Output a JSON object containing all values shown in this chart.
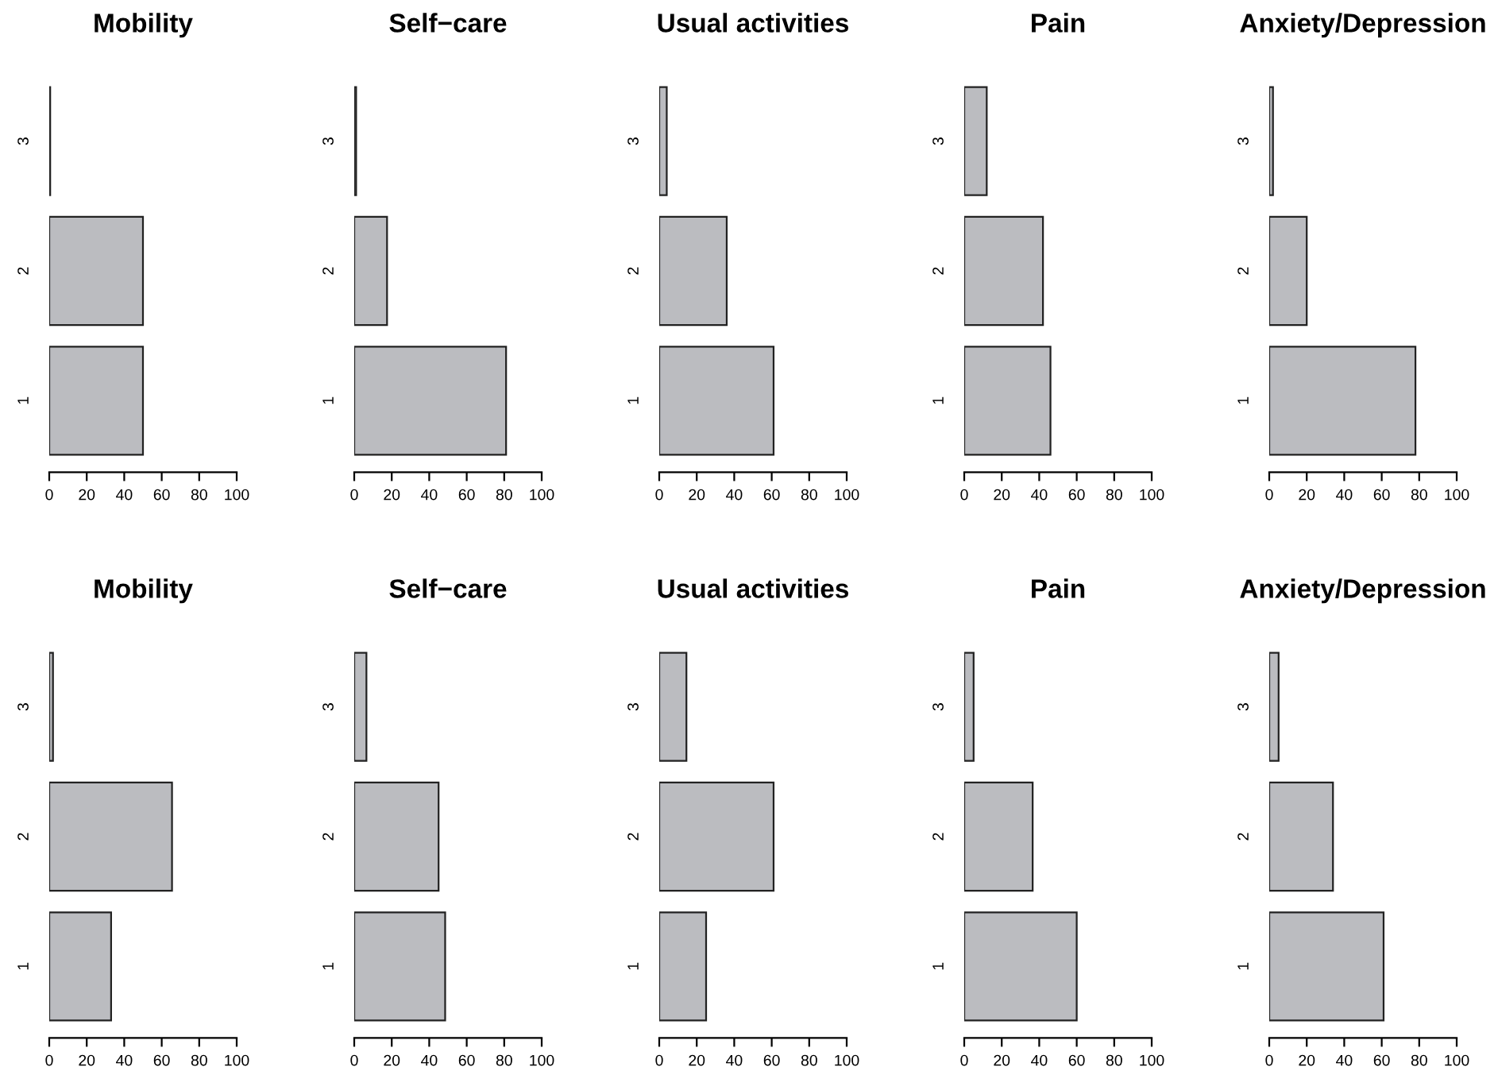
{
  "chart_data": [
    {
      "type": "bar",
      "orientation": "horizontal",
      "title": "Mobility",
      "categories": [
        "3",
        "2",
        "1"
      ],
      "values": [
        0.5,
        50,
        50
      ],
      "color": "#bbbcc0",
      "xlim": [
        0,
        100
      ],
      "xticks": [
        0,
        20,
        40,
        60,
        80,
        100
      ]
    },
    {
      "type": "bar",
      "orientation": "horizontal",
      "title": "Self−care",
      "categories": [
        "3",
        "2",
        "1"
      ],
      "values": [
        1,
        17.5,
        81
      ],
      "color": "#bbbcc0",
      "xlim": [
        0,
        100
      ],
      "xticks": [
        0,
        20,
        40,
        60,
        80,
        100
      ]
    },
    {
      "type": "bar",
      "orientation": "horizontal",
      "title": "Usual activities",
      "categories": [
        "3",
        "2",
        "1"
      ],
      "values": [
        4,
        36,
        61
      ],
      "color": "#bbbcc0",
      "xlim": [
        0,
        100
      ],
      "xticks": [
        0,
        20,
        40,
        60,
        80,
        100
      ]
    },
    {
      "type": "bar",
      "orientation": "horizontal",
      "title": "Pain",
      "categories": [
        "3",
        "2",
        "1"
      ],
      "values": [
        12,
        42,
        46
      ],
      "color": "#bbbcc0",
      "xlim": [
        0,
        100
      ],
      "xticks": [
        0,
        20,
        40,
        60,
        80,
        100
      ]
    },
    {
      "type": "bar",
      "orientation": "horizontal",
      "title": "Anxiety/Depression",
      "categories": [
        "3",
        "2",
        "1"
      ],
      "values": [
        2,
        20,
        78
      ],
      "color": "#bbbcc0",
      "xlim": [
        0,
        100
      ],
      "xticks": [
        0,
        20,
        40,
        60,
        80,
        100
      ]
    },
    {
      "type": "bar",
      "orientation": "horizontal",
      "title": "Mobility",
      "categories": [
        "3",
        "2",
        "1"
      ],
      "values": [
        2,
        65.5,
        33
      ],
      "color": "#bbbcc0",
      "xlim": [
        0,
        100
      ],
      "xticks": [
        0,
        20,
        40,
        60,
        80,
        100
      ]
    },
    {
      "type": "bar",
      "orientation": "horizontal",
      "title": "Self−care",
      "categories": [
        "3",
        "2",
        "1"
      ],
      "values": [
        6.5,
        45,
        48.5
      ],
      "color": "#bbbcc0",
      "xlim": [
        0,
        100
      ],
      "xticks": [
        0,
        20,
        40,
        60,
        80,
        100
      ]
    },
    {
      "type": "bar",
      "orientation": "horizontal",
      "title": "Usual activities",
      "categories": [
        "3",
        "2",
        "1"
      ],
      "values": [
        14.5,
        61,
        25
      ],
      "color": "#bbbcc0",
      "xlim": [
        0,
        100
      ],
      "xticks": [
        0,
        20,
        40,
        60,
        80,
        100
      ]
    },
    {
      "type": "bar",
      "orientation": "horizontal",
      "title": "Pain",
      "categories": [
        "3",
        "2",
        "1"
      ],
      "values": [
        5,
        36.5,
        60
      ],
      "color": "#bbbcc0",
      "xlim": [
        0,
        100
      ],
      "xticks": [
        0,
        20,
        40,
        60,
        80,
        100
      ]
    },
    {
      "type": "bar",
      "orientation": "horizontal",
      "title": "Anxiety/Depression",
      "categories": [
        "3",
        "2",
        "1"
      ],
      "values": [
        5,
        34,
        61
      ],
      "color": "#bbbcc0",
      "xlim": [
        0,
        100
      ],
      "xticks": [
        0,
        20,
        40,
        60,
        80,
        100
      ]
    }
  ]
}
